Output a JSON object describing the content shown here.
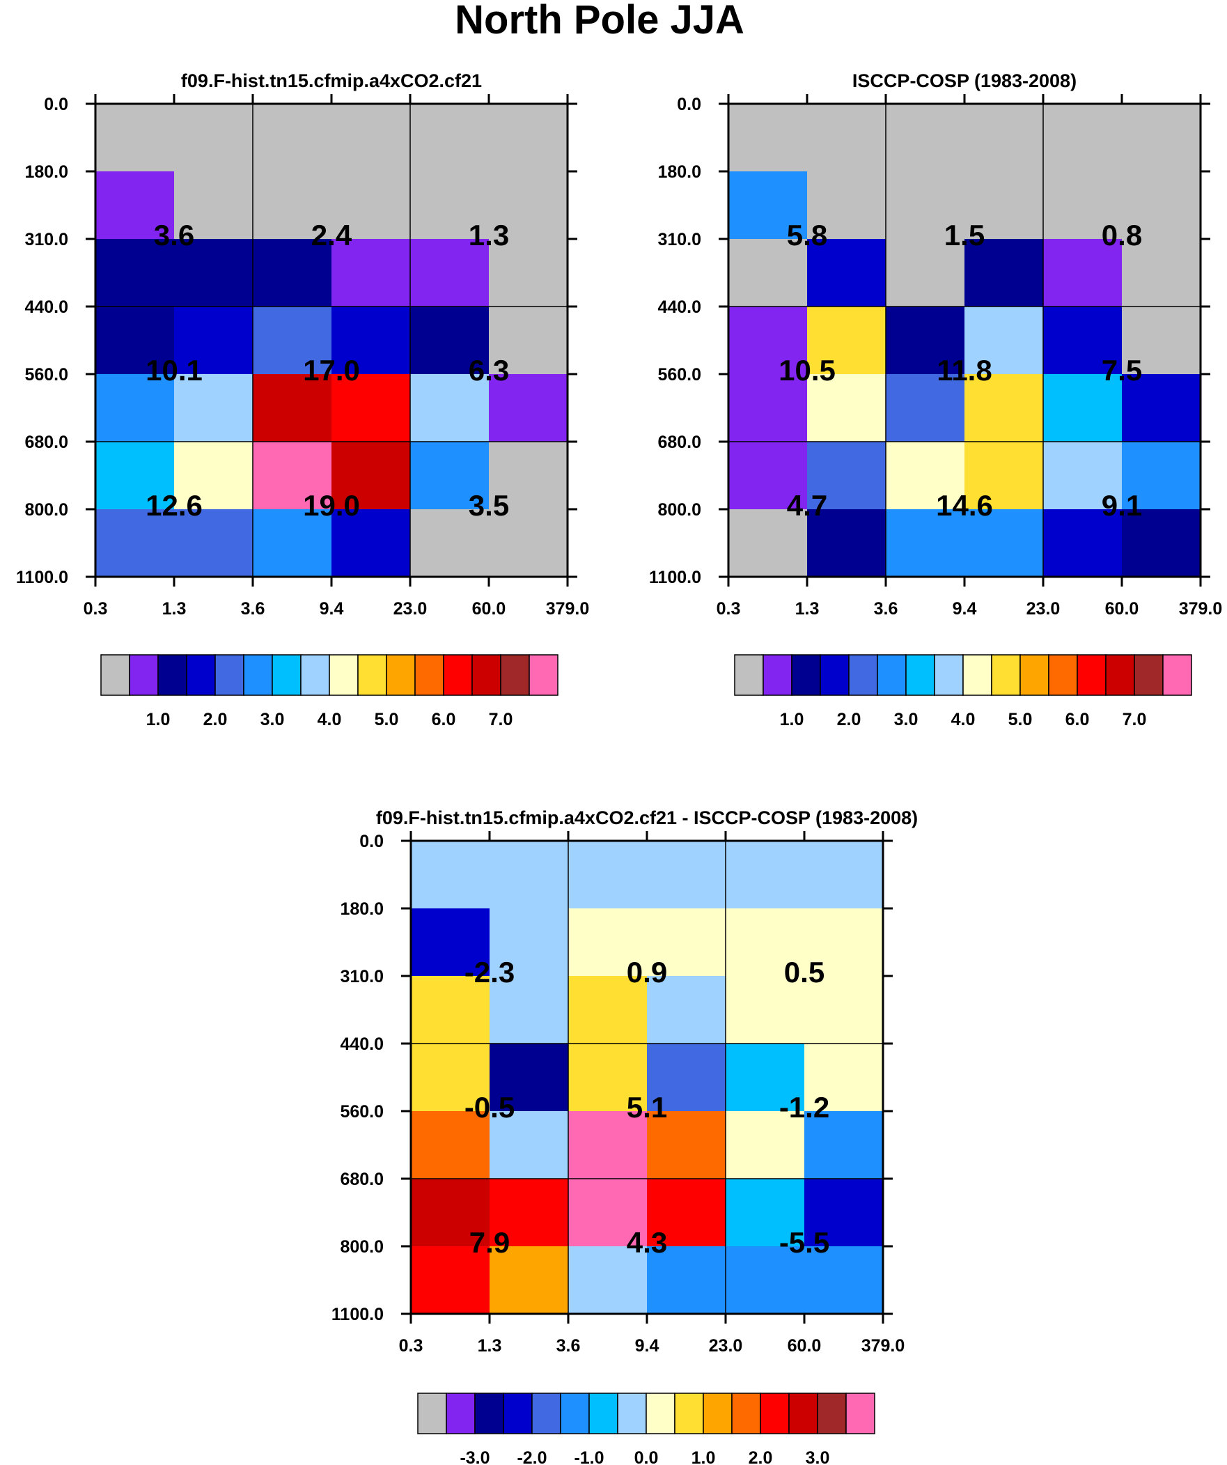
{
  "figure_title": "North Pole JJA",
  "chart_data": [
    {
      "type": "heatmap",
      "title": "f09.F-hist.tn15.cfmip.a4xCO2.cf21",
      "x_ticks": [
        "0.3",
        "1.3",
        "3.6",
        "9.4",
        "23.0",
        "60.0",
        "379.0"
      ],
      "y_ticks": [
        "0.0",
        "180.0",
        "310.0",
        "440.0",
        "560.0",
        "680.0",
        "800.0",
        "1100.0"
      ],
      "cell_colors": [
        [
          "#c0c0c0",
          "#c0c0c0",
          "#c0c0c0",
          "#c0c0c0",
          "#c0c0c0",
          "#c0c0c0"
        ],
        [
          "#8225f0",
          "#c0c0c0",
          "#c0c0c0",
          "#c0c0c0",
          "#c0c0c0",
          "#c0c0c0"
        ],
        [
          "#000090",
          "#000090",
          "#000090",
          "#8225f0",
          "#8225f0",
          "#c0c0c0"
        ],
        [
          "#000090",
          "#0000cd",
          "#4169e1",
          "#0000cd",
          "#000090",
          "#c0c0c0"
        ],
        [
          "#1e90ff",
          "#a0d2ff",
          "#cd0000",
          "#ff0000",
          "#a0d2ff",
          "#8225f0"
        ],
        [
          "#00bfff",
          "#ffffc8",
          "#ff69b4",
          "#cd0000",
          "#1e90ff",
          "#c0c0c0"
        ],
        [
          "#4169e1",
          "#4169e1",
          "#1e90ff",
          "#0000cd",
          "#c0c0c0",
          "#c0c0c0"
        ]
      ],
      "block_values": [
        [
          "3.6",
          "2.4",
          "1.3"
        ],
        [
          "10.1",
          "17.0",
          "6.3"
        ],
        [
          "12.6",
          "19.0",
          "3.5"
        ]
      ],
      "colorbar": {
        "colors": [
          "#c0c0c0",
          "#8225f0",
          "#000090",
          "#0000cd",
          "#4169e1",
          "#1e90ff",
          "#00bfff",
          "#a0d2ff",
          "#ffffc8",
          "#ffdf32",
          "#ffa500",
          "#ff6a00",
          "#ff0000",
          "#cd0000",
          "#a02828",
          "#ff69b4"
        ],
        "labels": [
          "1.0",
          "2.0",
          "3.0",
          "4.0",
          "5.0",
          "6.0",
          "7.0"
        ]
      }
    },
    {
      "type": "heatmap",
      "title": "ISCCP-COSP (1983-2008)",
      "x_ticks": [
        "0.3",
        "1.3",
        "3.6",
        "9.4",
        "23.0",
        "60.0",
        "379.0"
      ],
      "y_ticks": [
        "0.0",
        "180.0",
        "310.0",
        "440.0",
        "560.0",
        "680.0",
        "800.0",
        "1100.0"
      ],
      "cell_colors": [
        [
          "#c0c0c0",
          "#c0c0c0",
          "#c0c0c0",
          "#c0c0c0",
          "#c0c0c0",
          "#c0c0c0"
        ],
        [
          "#1e90ff",
          "#c0c0c0",
          "#c0c0c0",
          "#c0c0c0",
          "#c0c0c0",
          "#c0c0c0"
        ],
        [
          "#c0c0c0",
          "#0000cd",
          "#c0c0c0",
          "#000090",
          "#8225f0",
          "#c0c0c0"
        ],
        [
          "#8225f0",
          "#ffdf32",
          "#000090",
          "#a0d2ff",
          "#0000cd",
          "#c0c0c0"
        ],
        [
          "#8225f0",
          "#ffffc8",
          "#4169e1",
          "#ffdf32",
          "#00bfff",
          "#0000cd"
        ],
        [
          "#8225f0",
          "#4169e1",
          "#ffffc8",
          "#ffdf32",
          "#a0d2ff",
          "#1e90ff"
        ],
        [
          "#c0c0c0",
          "#000090",
          "#1e90ff",
          "#1e90ff",
          "#0000cd",
          "#000090"
        ]
      ],
      "block_values": [
        [
          "5.8",
          "1.5",
          "0.8"
        ],
        [
          "10.5",
          "11.8",
          "7.5"
        ],
        [
          "4.7",
          "14.6",
          "9.1"
        ]
      ],
      "colorbar": {
        "colors": [
          "#c0c0c0",
          "#8225f0",
          "#000090",
          "#0000cd",
          "#4169e1",
          "#1e90ff",
          "#00bfff",
          "#a0d2ff",
          "#ffffc8",
          "#ffdf32",
          "#ffa500",
          "#ff6a00",
          "#ff0000",
          "#cd0000",
          "#a02828",
          "#ff69b4"
        ],
        "labels": [
          "1.0",
          "2.0",
          "3.0",
          "4.0",
          "5.0",
          "6.0",
          "7.0"
        ]
      }
    },
    {
      "type": "heatmap",
      "title": "f09.F-hist.tn15.cfmip.a4xCO2.cf21 - ISCCP-COSP (1983-2008)",
      "x_ticks": [
        "0.3",
        "1.3",
        "3.6",
        "9.4",
        "23.0",
        "60.0",
        "379.0"
      ],
      "y_ticks": [
        "0.0",
        "180.0",
        "310.0",
        "440.0",
        "560.0",
        "680.0",
        "800.0",
        "1100.0"
      ],
      "cell_colors": [
        [
          "#a0d2ff",
          "#a0d2ff",
          "#a0d2ff",
          "#a0d2ff",
          "#a0d2ff",
          "#a0d2ff"
        ],
        [
          "#0000cd",
          "#a0d2ff",
          "#ffffc8",
          "#ffffc8",
          "#ffffc8",
          "#ffffc8"
        ],
        [
          "#ffdf32",
          "#a0d2ff",
          "#ffdf32",
          "#a0d2ff",
          "#ffffc8",
          "#ffffc8"
        ],
        [
          "#ffdf32",
          "#000090",
          "#ffdf32",
          "#4169e1",
          "#00bfff",
          "#ffffc8"
        ],
        [
          "#ff6a00",
          "#a0d2ff",
          "#ff69b4",
          "#ff6a00",
          "#ffffc8",
          "#1e90ff"
        ],
        [
          "#cd0000",
          "#ff0000",
          "#ff69b4",
          "#ff0000",
          "#00bfff",
          "#0000cd"
        ],
        [
          "#ff0000",
          "#ffa500",
          "#a0d2ff",
          "#1e90ff",
          "#1e90ff",
          "#1e90ff"
        ]
      ],
      "block_values": [
        [
          "-2.3",
          "0.9",
          "0.5"
        ],
        [
          "-0.5",
          "5.1",
          "-1.2"
        ],
        [
          "7.9",
          "4.3",
          "-5.5"
        ]
      ],
      "colorbar": {
        "colors": [
          "#c0c0c0",
          "#8225f0",
          "#000090",
          "#0000cd",
          "#4169e1",
          "#1e90ff",
          "#00bfff",
          "#a0d2ff",
          "#ffffc8",
          "#ffdf32",
          "#ffa500",
          "#ff6a00",
          "#ff0000",
          "#cd0000",
          "#a02828",
          "#ff69b4"
        ],
        "labels": [
          "-3.0",
          "-2.0",
          "-1.0",
          "0.0",
          "1.0",
          "2.0",
          "3.0"
        ]
      }
    }
  ]
}
